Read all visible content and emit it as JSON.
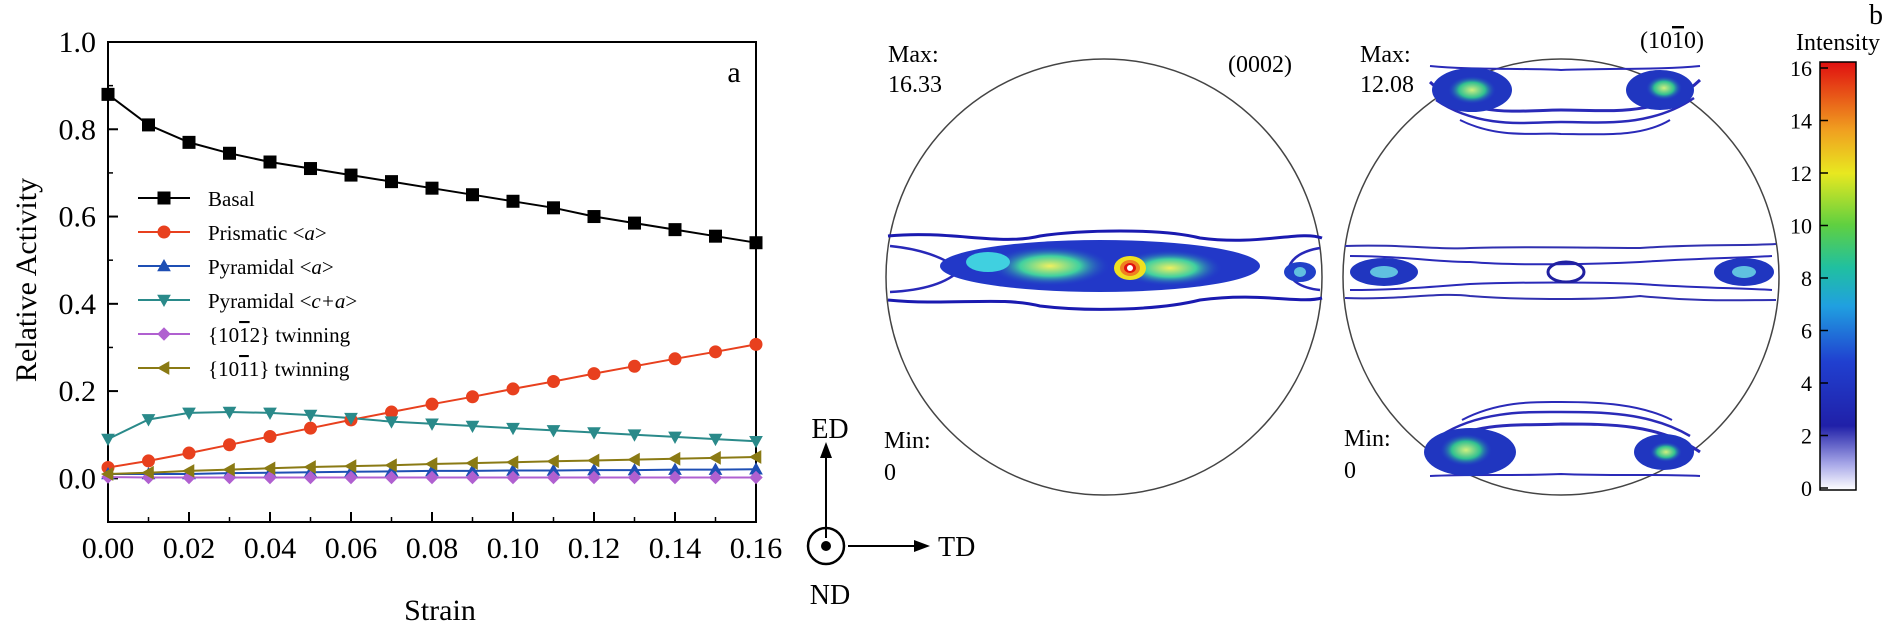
{
  "chart_data": [
    {
      "type": "line",
      "panel_label": "a",
      "xlabel": "Strain",
      "ylabel": "Relative Activity",
      "xlim": [
        0,
        0.16
      ],
      "ylim": [
        -0.1,
        1.0
      ],
      "x_ticks": [
        "0.00",
        "0.02",
        "0.04",
        "0.06",
        "0.08",
        "0.10",
        "0.12",
        "0.14",
        "0.16"
      ],
      "y_ticks": [
        "0.0",
        "0.2",
        "0.4",
        "0.6",
        "0.8",
        "1.0"
      ],
      "legend_position": "center-left",
      "x": [
        0.0,
        0.01,
        0.02,
        0.03,
        0.04,
        0.05,
        0.06,
        0.07,
        0.08,
        0.09,
        0.1,
        0.11,
        0.12,
        0.13,
        0.14,
        0.15,
        0.16
      ],
      "series": [
        {
          "name": "Basal",
          "legend_prefix": "Basal",
          "legend_italic": "",
          "legend_suffix": "",
          "color": "#000000",
          "marker": "square",
          "values": [
            0.88,
            0.81,
            0.77,
            0.745,
            0.725,
            0.71,
            0.695,
            0.68,
            0.665,
            0.65,
            0.635,
            0.62,
            0.6,
            0.585,
            0.57,
            0.555,
            0.54
          ]
        },
        {
          "name": "Prismatic <a>",
          "legend_prefix": "Prismatic <",
          "legend_italic": "a",
          "legend_suffix": ">",
          "color": "#e8401e",
          "marker": "circle",
          "values": [
            0.025,
            0.04,
            0.058,
            0.077,
            0.096,
            0.115,
            0.134,
            0.152,
            0.17,
            0.187,
            0.205,
            0.222,
            0.24,
            0.257,
            0.274,
            0.29,
            0.307
          ]
        },
        {
          "name": "Pyramidal <a>",
          "legend_prefix": "Pyramidal <",
          "legend_italic": "a",
          "legend_suffix": ">",
          "color": "#1e4fb4",
          "marker": "triangle-up",
          "values": [
            0.01,
            0.01,
            0.01,
            0.012,
            0.013,
            0.014,
            0.015,
            0.016,
            0.017,
            0.017,
            0.018,
            0.018,
            0.019,
            0.019,
            0.02,
            0.02,
            0.021
          ]
        },
        {
          "name": "Pyramidal <c+a>",
          "legend_prefix": "Pyramidal <",
          "legend_italic": "c+a",
          "legend_suffix": ">",
          "color": "#2a8a8a",
          "marker": "triangle-down",
          "values": [
            0.09,
            0.135,
            0.15,
            0.152,
            0.15,
            0.145,
            0.138,
            0.13,
            0.125,
            0.12,
            0.115,
            0.11,
            0.105,
            0.1,
            0.095,
            0.09,
            0.085
          ]
        },
        {
          "name": "{10-12} twinning",
          "legend_prefix": "{10",
          "legend_over": "1",
          "legend_after": "2} twinning",
          "color": "#b060d0",
          "marker": "diamond",
          "values": [
            0.003,
            0.002,
            0.002,
            0.002,
            0.002,
            0.002,
            0.002,
            0.002,
            0.002,
            0.002,
            0.002,
            0.002,
            0.002,
            0.002,
            0.002,
            0.002,
            0.002
          ]
        },
        {
          "name": "{10-11} twinning",
          "legend_prefix": "{10",
          "legend_over": "1",
          "legend_after": "1} twinning",
          "color": "#8a7a14",
          "marker": "triangle-left",
          "values": [
            0.01,
            0.013,
            0.017,
            0.02,
            0.023,
            0.026,
            0.028,
            0.03,
            0.033,
            0.035,
            0.037,
            0.039,
            0.041,
            0.043,
            0.045,
            0.047,
            0.049
          ]
        }
      ]
    },
    {
      "type": "heatmap",
      "panel_label": "b",
      "pole_figures": [
        {
          "plane": "(0002)",
          "max_label": "Max:",
          "max_value": "16.33",
          "min_label": "Min:",
          "min_value": "0"
        },
        {
          "plane_prefix": "(10",
          "plane_over": "1",
          "plane_suffix": "0)",
          "plane": "(10-10)",
          "max_label": "Max:",
          "max_value": "12.08",
          "min_label": "Min:",
          "min_value": "0"
        }
      ],
      "colorbar": {
        "title": "Intensity",
        "min": 0,
        "max": 16,
        "ticks": [
          "0",
          "2",
          "4",
          "6",
          "8",
          "10",
          "12",
          "14",
          "16"
        ]
      },
      "axes_triad": {
        "up": "ED",
        "right": "TD",
        "out": "ND"
      }
    }
  ]
}
